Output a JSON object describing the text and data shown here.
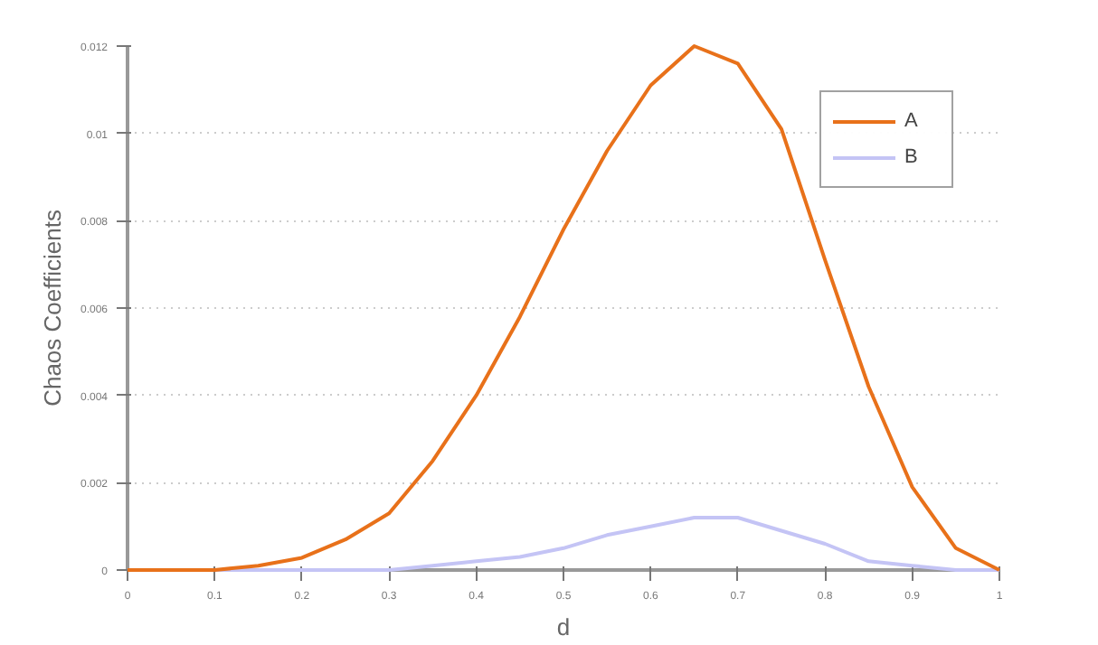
{
  "chart_data": {
    "type": "line",
    "xlabel": "d",
    "ylabel": "Chaos Coefficients",
    "x": [
      0,
      0.05,
      0.1,
      0.15,
      0.2,
      0.25,
      0.3,
      0.35,
      0.4,
      0.45,
      0.5,
      0.55,
      0.6,
      0.65,
      0.7,
      0.75,
      0.8,
      0.85,
      0.9,
      0.95,
      1
    ],
    "series": [
      {
        "name": "A",
        "color": "#e8711a",
        "values": [
          0,
          0,
          0,
          0.0001,
          0.00028,
          0.0007,
          0.0013,
          0.0025,
          0.004,
          0.0058,
          0.0078,
          0.0096,
          0.0111,
          0.012,
          0.0116,
          0.0101,
          0.0071,
          0.0042,
          0.0019,
          0.0005,
          0
        ]
      },
      {
        "name": "B",
        "color": "#c4c4f5",
        "values": [
          0,
          0,
          0,
          0,
          0,
          0,
          0,
          0.0001,
          0.0002,
          0.0003,
          0.0005,
          0.0008,
          0.001,
          0.0012,
          0.0012,
          0.0009,
          0.0006,
          0.0002,
          0.0001,
          0,
          0
        ]
      }
    ],
    "xlim": [
      0,
      1
    ],
    "ylim": [
      0,
      0.012
    ],
    "xticks": [
      0,
      0.1,
      0.2,
      0.3,
      0.4,
      0.5,
      0.6,
      0.7,
      0.8,
      0.9,
      1
    ],
    "yticks": [
      0,
      0.002,
      0.004,
      0.006,
      0.008,
      0.01,
      0.012
    ],
    "grid": "y",
    "legend": "top right",
    "line_style": "solid",
    "marker": "none"
  }
}
